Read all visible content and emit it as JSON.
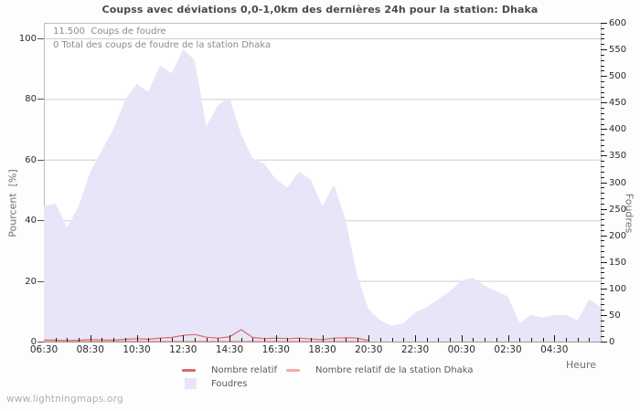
{
  "title": "Coupss avec déviations 0,0-1,0km des dernières 24h pour la station: Dhaka",
  "watermark": "www.lightningmaps.org",
  "annotations": {
    "total_strikes": "11.500  Coups de foudre",
    "station_total": "0 Total des coups de foudre de la station Dhaka"
  },
  "axes": {
    "left_title": "Pourcent  [%]",
    "right_title": "Foudres",
    "x_title": "Heure",
    "left_ticks": [
      0,
      20,
      40,
      60,
      80,
      100
    ],
    "right_tick_major_step": 50,
    "right_tick_minor_step": 10,
    "x_tick_labels": [
      "06:30",
      "08:30",
      "10:30",
      "12:30",
      "14:30",
      "16:30",
      "18:30",
      "20:30",
      "22:30",
      "00:30",
      "02:30",
      "04:30"
    ]
  },
  "colors": {
    "background": "#fdfdfd",
    "plot_background": "#ffffff",
    "grid": "#cdcdcd",
    "plot_border": "#bcbcbc",
    "bottom_axis": "#999999",
    "tick": "#1a1a1a",
    "left_tick": "#555555",
    "area_fill": "#e6e6f8",
    "line_relative": "#d96a6a",
    "line_station": "#f5aba4"
  },
  "chart_data": {
    "type": "area",
    "x_start": "06:30",
    "x_step_minutes": 30,
    "x_span_hours": 24,
    "left_axis": {
      "label": "Pourcent [%]",
      "range": [
        0,
        105
      ],
      "ticks": [
        0,
        20,
        40,
        60,
        80,
        100
      ]
    },
    "right_axis": {
      "label": "Foudres",
      "range": [
        0,
        600
      ],
      "major_tick": 50,
      "minor_tick": 10
    },
    "grid": "horizontal",
    "legend_position": "bottom",
    "series": [
      {
        "name": "Foudres",
        "type": "area",
        "axis": "right",
        "color": "#e6e6f8",
        "values": [
          255,
          260,
          215,
          255,
          320,
          360,
          400,
          455,
          485,
          470,
          520,
          505,
          550,
          530,
          405,
          445,
          460,
          390,
          345,
          335,
          305,
          290,
          320,
          305,
          255,
          295,
          230,
          125,
          60,
          40,
          30,
          35,
          55,
          65,
          80,
          95,
          115,
          120,
          105,
          95,
          85,
          35,
          50,
          45,
          50,
          50,
          40,
          80,
          65
        ]
      },
      {
        "name": "Nombre relatif",
        "type": "line",
        "axis": "left",
        "color": "#d96a6a",
        "values": [
          0.4,
          0.3,
          0.2,
          0.3,
          0.5,
          0.4,
          0.3,
          0.6,
          0.8,
          0.6,
          1.0,
          1.2,
          1.9,
          2.2,
          1.3,
          1.0,
          1.4,
          3.8,
          1.2,
          0.8,
          1.0,
          0.8,
          1.0,
          0.7,
          0.5,
          1.0,
          1.1,
          1.0,
          0.2
        ]
      },
      {
        "name": "Nombre relatif de la station Dhaka",
        "type": "line",
        "axis": "left",
        "color": "#f5aba4",
        "values": [
          0,
          0,
          0,
          0,
          0,
          0,
          0,
          0,
          0,
          0,
          0,
          0,
          0,
          0,
          0,
          0,
          0,
          0,
          0,
          0,
          0,
          0,
          0,
          0,
          0,
          0,
          0,
          0,
          0
        ]
      }
    ]
  }
}
